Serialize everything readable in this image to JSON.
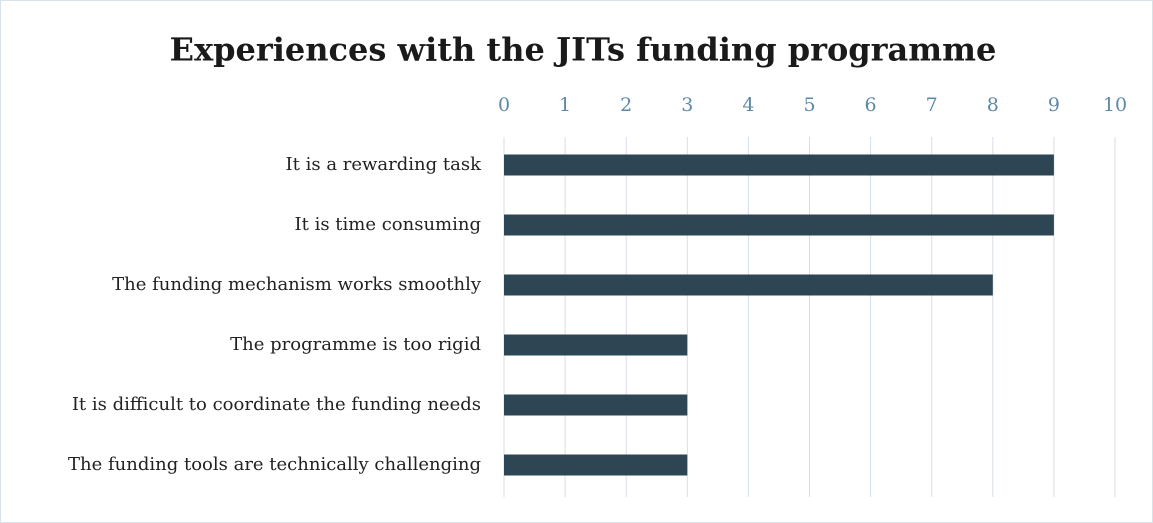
{
  "chart_data": {
    "type": "bar",
    "orientation": "horizontal",
    "title": "Experiences with the JITs funding programme",
    "categories": [
      "It is a rewarding task",
      "It is time consuming",
      "The funding mechanism works smoothly",
      "The programme is too rigid",
      "It is difficult to coordinate the funding needs",
      "The funding tools are technically challenging"
    ],
    "values": [
      9,
      9,
      8,
      3,
      3,
      3
    ],
    "color": "#2e4553",
    "xlim": [
      0,
      10
    ],
    "xticks": [
      0,
      1,
      2,
      3,
      4,
      5,
      6,
      7,
      8,
      9,
      10
    ],
    "grid": true
  }
}
